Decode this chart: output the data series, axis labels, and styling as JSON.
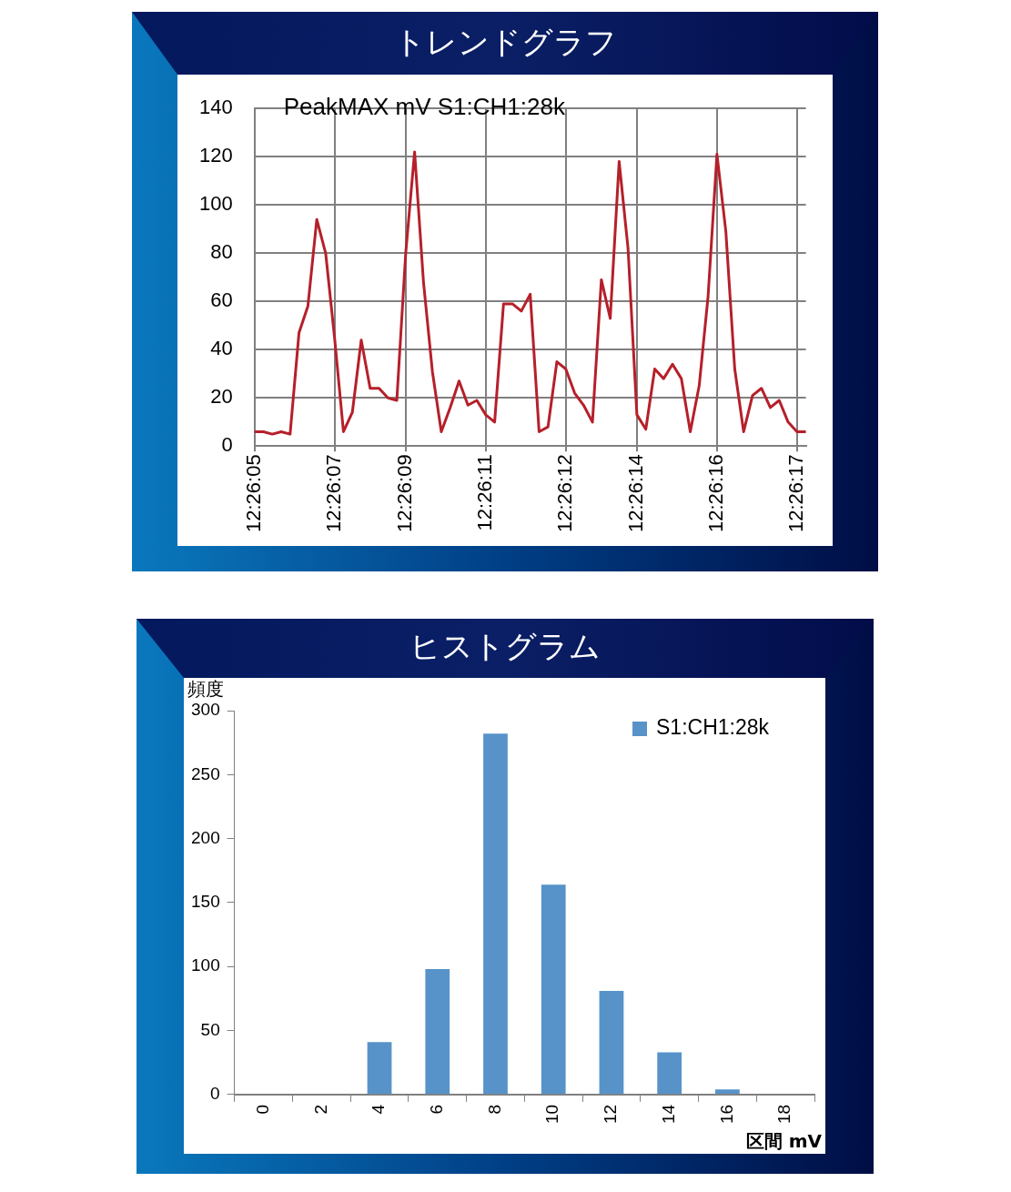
{
  "chart_data": [
    {
      "type": "line",
      "title": "トレンドグラフ",
      "subtitle": "PeakMAX mV S1:CH1:28k",
      "categories": [
        "12:26:05",
        null,
        null,
        null,
        null,
        null,
        null,
        null,
        null,
        "12:26:07",
        null,
        null,
        null,
        null,
        null,
        null,
        null,
        "12:26:09",
        null,
        null,
        null,
        null,
        null,
        null,
        null,
        null,
        "12:26:11",
        null,
        null,
        null,
        null,
        null,
        null,
        null,
        null,
        "12:26:12",
        null,
        null,
        null,
        null,
        null,
        null,
        null,
        "12:26:14",
        null,
        null,
        null,
        null,
        null,
        null,
        null,
        null,
        "12:26:16",
        null,
        null,
        null,
        null,
        null,
        null,
        null,
        null,
        "12:26:17",
        null
      ],
      "series": [
        {
          "color": "#b5202a",
          "values": [
            6,
            6,
            5,
            6,
            5,
            47,
            58,
            94,
            80,
            45,
            6,
            14,
            44,
            24,
            24,
            20,
            19,
            80,
            122,
            68,
            31,
            6,
            16,
            27,
            17,
            19,
            13,
            10,
            59,
            59,
            56,
            63,
            6,
            8,
            35,
            32,
            22,
            17,
            10,
            69,
            53,
            118,
            82,
            13,
            7,
            32,
            28,
            34,
            28,
            6,
            25,
            62,
            121,
            89,
            32,
            6,
            21,
            24,
            16,
            19,
            10,
            6,
            6
          ]
        }
      ],
      "ylim": [
        0,
        140
      ],
      "yticks": [
        0,
        20,
        40,
        60,
        80,
        100,
        120,
        140
      ],
      "grid": true,
      "marker": "none"
    },
    {
      "type": "bar",
      "title": "ヒストグラム",
      "xlabel": "区間 mV",
      "ylabel": "頻度",
      "categories": [
        "0",
        "2",
        "4",
        "6",
        "8",
        "10",
        "12",
        "14",
        "16",
        "18"
      ],
      "series": [
        {
          "name": "S1:CH1:28k",
          "color": "#5793c9",
          "values": [
            0,
            0,
            41,
            98,
            282,
            164,
            81,
            33,
            4,
            0
          ]
        }
      ],
      "ylim": [
        0,
        300
      ],
      "yticks": [
        0,
        50,
        100,
        150,
        200,
        250,
        300
      ],
      "grid": false,
      "legend": "top right"
    }
  ]
}
